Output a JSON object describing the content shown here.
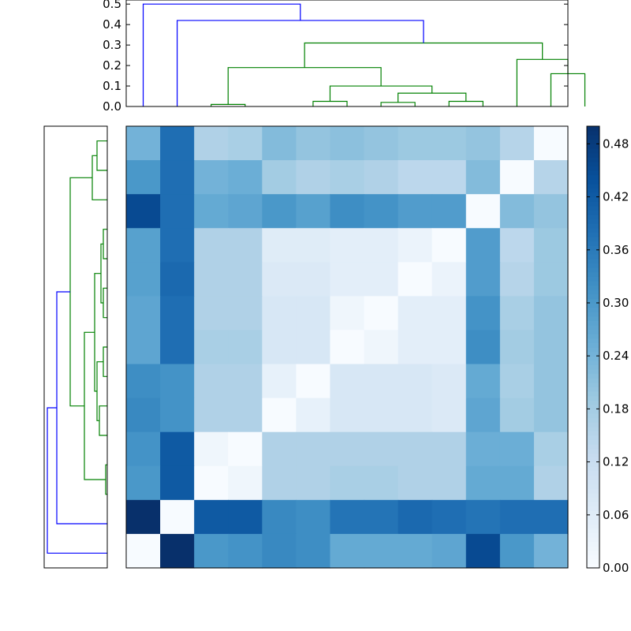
{
  "chart_data": [
    {
      "type": "dendrogram",
      "orientation": "top",
      "ylim": [
        0,
        0.52
      ],
      "yticks": [
        "0.0",
        "0.1",
        "0.2",
        "0.3",
        "0.4",
        "0.5"
      ],
      "colors": {
        "above_threshold": "#0000ff",
        "cluster": "#008000"
      },
      "links": [
        {
          "left": 2.5,
          "right": 3.5,
          "h_left": 0,
          "h_right": 0,
          "h": 0.01,
          "color": "#008000"
        },
        {
          "left": 5.5,
          "right": 6.5,
          "h_left": 0,
          "h_right": 0,
          "h": 0.025,
          "color": "#008000"
        },
        {
          "left": 7.5,
          "right": 8.5,
          "h_left": 0,
          "h_right": 0,
          "h": 0.02,
          "color": "#008000"
        },
        {
          "left": 9.5,
          "right": 10.5,
          "h_left": 0,
          "h_right": 0,
          "h": 0.025,
          "color": "#008000"
        },
        {
          "left": 8,
          "right": 10,
          "h_left": 0.02,
          "h_right": 0.025,
          "h": 0.065,
          "color": "#008000"
        },
        {
          "left": 6,
          "right": 9,
          "h_left": 0.025,
          "h_right": 0.065,
          "h": 0.1,
          "color": "#008000"
        },
        {
          "left": 3,
          "right": 7.5,
          "h_left": 0.01,
          "h_right": 0.1,
          "h": 0.19,
          "color": "#008000"
        },
        {
          "left": 12.5,
          "right": 13.5,
          "h_left": 0,
          "h_right": 0,
          "h": 0.16,
          "color": "#008000"
        },
        {
          "left": 11.5,
          "right": 13,
          "h_left": 0,
          "h_right": 0.16,
          "h": 0.23,
          "color": "#008000"
        },
        {
          "left": 5.25,
          "right": 12.25,
          "h_left": 0.19,
          "h_right": 0.23,
          "h": 0.31,
          "color": "#008000"
        },
        {
          "left": 1.5,
          "right": 8.75,
          "h_left": 0,
          "h_right": 0.31,
          "h": 0.42,
          "color": "#0000ff"
        },
        {
          "left": 0.5,
          "right": 5.125,
          "h_left": 0,
          "h_right": 0.42,
          "h": 0.5,
          "color": "#0000ff"
        }
      ]
    },
    {
      "type": "dendrogram",
      "orientation": "left",
      "colors": {
        "above_threshold": "#0000ff",
        "cluster": "#008000"
      },
      "links": [
        {
          "left": 0.5,
          "right": 1.5,
          "h_left": 0,
          "h_right": 0,
          "h": 0.052,
          "color": "#008000"
        },
        {
          "left": 1,
          "right": 2.5,
          "h_left": 0.052,
          "h_right": 0,
          "h": 0.076,
          "color": "#008000"
        },
        {
          "left": 3.5,
          "right": 4.5,
          "h_left": 0,
          "h_right": 0,
          "h": 0.02,
          "color": "#008000"
        },
        {
          "left": 5.5,
          "right": 6.5,
          "h_left": 0,
          "h_right": 0,
          "h": 0.02,
          "color": "#008000"
        },
        {
          "left": 4,
          "right": 6,
          "h_left": 0.02,
          "h_right": 0.02,
          "h": 0.032,
          "color": "#008000"
        },
        {
          "left": 7.5,
          "right": 8.5,
          "h_left": 0,
          "h_right": 0,
          "h": 0.02,
          "color": "#008000"
        },
        {
          "left": 9.5,
          "right": 10.5,
          "h_left": 0,
          "h_right": 0,
          "h": 0.04,
          "color": "#008000"
        },
        {
          "left": 8,
          "right": 10,
          "h_left": 0.02,
          "h_right": 0.04,
          "h": 0.052,
          "color": "#008000"
        },
        {
          "left": 5,
          "right": 9,
          "h_left": 0.032,
          "h_right": 0.052,
          "h": 0.064,
          "color": "#008000"
        },
        {
          "left": 11.5,
          "right": 12.5,
          "h_left": 0,
          "h_right": 0,
          "h": 0.008,
          "color": "#008000"
        },
        {
          "left": 7,
          "right": 12,
          "h_left": 0.064,
          "h_right": 0.008,
          "h": 0.116,
          "color": "#008000"
        },
        {
          "left": 1.75,
          "right": 9.5,
          "h_left": 0.076,
          "h_right": 0.116,
          "h": 0.188,
          "color": "#008000"
        },
        {
          "left": 5.625,
          "right": 13.5,
          "h_left": 0.188,
          "h_right": 0,
          "h": 0.256,
          "color": "#0000ff"
        },
        {
          "left": 9.5625,
          "right": 14.5,
          "h_left": 0.256,
          "h_right": 0,
          "h": 0.304,
          "color": "#0000ff"
        }
      ]
    },
    {
      "type": "heatmap",
      "rows": 13,
      "cols": 13,
      "colorscale": "Blues",
      "vmin": 0.0,
      "vmax": 0.5,
      "values": [
        [
          0.24,
          0.38,
          0.16,
          0.17,
          0.22,
          0.2,
          0.21,
          0.2,
          0.19,
          0.19,
          0.2,
          0.15,
          0.0
        ],
        [
          0.3,
          0.38,
          0.24,
          0.25,
          0.18,
          0.16,
          0.17,
          0.16,
          0.14,
          0.14,
          0.22,
          0.0,
          0.15
        ],
        [
          0.45,
          0.38,
          0.26,
          0.27,
          0.3,
          0.28,
          0.32,
          0.31,
          0.29,
          0.29,
          0.0,
          0.22,
          0.2
        ],
        [
          0.28,
          0.38,
          0.16,
          0.16,
          0.06,
          0.06,
          0.05,
          0.05,
          0.03,
          0.0,
          0.29,
          0.14,
          0.19
        ],
        [
          0.28,
          0.39,
          0.16,
          0.16,
          0.07,
          0.07,
          0.05,
          0.05,
          0.0,
          0.03,
          0.29,
          0.15,
          0.19
        ],
        [
          0.27,
          0.38,
          0.16,
          0.16,
          0.08,
          0.08,
          0.02,
          0.0,
          0.05,
          0.05,
          0.31,
          0.17,
          0.2
        ],
        [
          0.27,
          0.38,
          0.17,
          0.17,
          0.08,
          0.08,
          0.0,
          0.02,
          0.05,
          0.05,
          0.32,
          0.18,
          0.2
        ],
        [
          0.32,
          0.31,
          0.16,
          0.16,
          0.04,
          0.0,
          0.08,
          0.08,
          0.08,
          0.07,
          0.26,
          0.17,
          0.2
        ],
        [
          0.33,
          0.31,
          0.16,
          0.16,
          0.0,
          0.04,
          0.08,
          0.08,
          0.08,
          0.07,
          0.27,
          0.18,
          0.2
        ],
        [
          0.31,
          0.42,
          0.02,
          0.0,
          0.16,
          0.16,
          0.16,
          0.16,
          0.16,
          0.16,
          0.25,
          0.25,
          0.17
        ],
        [
          0.3,
          0.42,
          0.0,
          0.02,
          0.16,
          0.16,
          0.17,
          0.17,
          0.16,
          0.16,
          0.26,
          0.26,
          0.16
        ],
        [
          0.5,
          0.0,
          0.42,
          0.42,
          0.33,
          0.32,
          0.37,
          0.37,
          0.39,
          0.38,
          0.37,
          0.38,
          0.38
        ],
        [
          0.0,
          0.5,
          0.3,
          0.31,
          0.33,
          0.32,
          0.26,
          0.26,
          0.26,
          0.27,
          0.45,
          0.3,
          0.24
        ]
      ]
    },
    {
      "type": "colorbar",
      "vmin": 0.0,
      "vmax": 0.5,
      "ticks": [
        "0.00",
        "0.06",
        "0.12",
        "0.18",
        "0.24",
        "0.30",
        "0.36",
        "0.42",
        "0.48"
      ],
      "tick_values": [
        0.0,
        0.06,
        0.12,
        0.18,
        0.24,
        0.3,
        0.36,
        0.42,
        0.48
      ]
    }
  ]
}
